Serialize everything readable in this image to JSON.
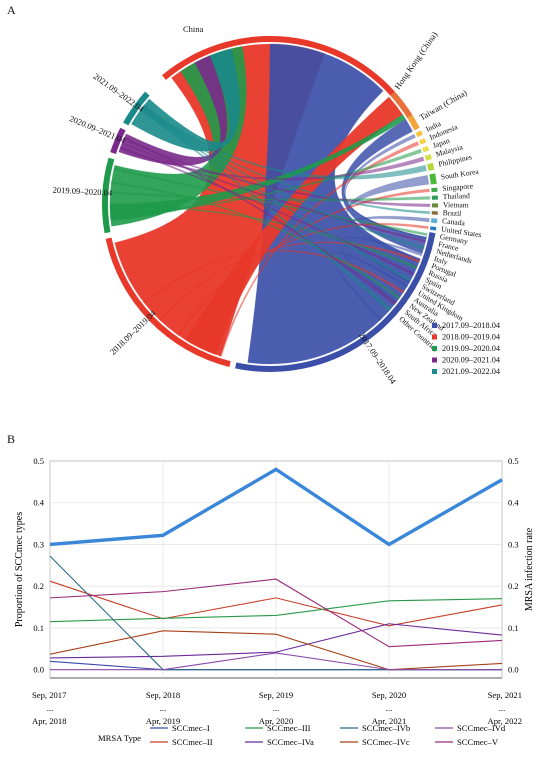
{
  "panels": {
    "a_label": "A",
    "b_label": "B"
  },
  "chart_data": [
    {
      "type": "chord",
      "countries": [
        {
          "name": "China",
          "color": "#e8382a"
        },
        {
          "name": "Hong Kong (China)",
          "color": "#e8703a"
        },
        {
          "name": "Taiwan (China)",
          "color": "#f2a43a"
        },
        {
          "name": "India",
          "color": "#f6c43a"
        },
        {
          "name": "Indonesia",
          "color": "#f4d24a"
        },
        {
          "name": "Japan",
          "color": "#e8e04a"
        },
        {
          "name": "Malaysia",
          "color": "#d6e04a"
        },
        {
          "name": "Philippines",
          "color": "#b6d63a"
        },
        {
          "name": "South Korea",
          "color": "#4fb83a"
        },
        {
          "name": "Singapore",
          "color": "#3aa84a"
        },
        {
          "name": "Thailand",
          "color": "#2f9a5a"
        },
        {
          "name": "Vietnam",
          "color": "#6a8a3a"
        },
        {
          "name": "Brazil",
          "color": "#8a6a3a"
        },
        {
          "name": "Canada",
          "color": "#5ab0d8"
        },
        {
          "name": "United States",
          "color": "#2a7ac8"
        },
        {
          "name": "Germany",
          "color": "#8aa0d8"
        },
        {
          "name": "France",
          "color": "#a0a0c8"
        },
        {
          "name": "Netherlands",
          "color": "#b0a0c0"
        },
        {
          "name": "Italy",
          "color": "#c0a0b0"
        },
        {
          "name": "Portugal",
          "color": "#c8a0a8"
        },
        {
          "name": "Russia",
          "color": "#d0a098"
        },
        {
          "name": "Spain",
          "color": "#d8a090"
        },
        {
          "name": "Switzerland",
          "color": "#c89080"
        },
        {
          "name": "United Kingdom",
          "color": "#c88080"
        },
        {
          "name": "Australia",
          "color": "#b87878"
        },
        {
          "name": "New Zealand",
          "color": "#a86868"
        },
        {
          "name": "South Africa",
          "color": "#984858"
        },
        {
          "name": "Other Countries",
          "color": "#883848"
        }
      ],
      "periods": [
        {
          "name": "2017.09–2018.04",
          "color": "#3b4fa8"
        },
        {
          "name": "2018.09–2019.04",
          "color": "#e8382a"
        },
        {
          "name": "2019.09–2020.04",
          "color": "#1f9a4a"
        },
        {
          "name": "2020.09–2021.04",
          "color": "#7a2a8a"
        },
        {
          "name": "2021.09–2022.04",
          "color": "#1a8a8a"
        }
      ],
      "legend_position": "bottom-right"
    },
    {
      "type": "line",
      "x_ticks": [
        {
          "top": "Sep, 2017",
          "mid": "...",
          "bottom": "Apr, 2018"
        },
        {
          "top": "Sep, 2018",
          "mid": "...",
          "bottom": "Apr, 2019"
        },
        {
          "top": "Sep, 2019",
          "mid": "...",
          "bottom": "Apr, 2020"
        },
        {
          "top": "Sep, 2020",
          "mid": "...",
          "bottom": "Apr, 2021"
        },
        {
          "top": "Sep, 2021",
          "mid": "...",
          "bottom": "Apr, 2022"
        }
      ],
      "ylabel_left": "Proportion of SCCmec types",
      "ylabel_right": "MRSA infection rate",
      "ylim": [
        -0.02,
        0.5
      ],
      "y_ticks": [
        "0.0",
        "0.1",
        "0.2",
        "0.3",
        "0.4",
        "0.5"
      ],
      "grid": true,
      "legend_title": "MRSA Type",
      "infection_rate": {
        "values": [
          0.3,
          0.322,
          0.48,
          0.3,
          0.455
        ],
        "color": "#3a86d8"
      },
      "series": [
        {
          "name": "SCCmec–I",
          "color": "#3a4aa8",
          "values": [
            0.02,
            0.0,
            0.0,
            0.0,
            0.0
          ]
        },
        {
          "name": "SCCmec–II",
          "color": "#c8402a",
          "values": [
            0.212,
            0.122,
            0.172,
            0.105,
            0.155
          ]
        },
        {
          "name": "SCCmec–III",
          "color": "#2a9a4a",
          "values": [
            0.115,
            0.123,
            0.13,
            0.165,
            0.17
          ]
        },
        {
          "name": "SCCmec–IVa",
          "color": "#6a2a9a",
          "values": [
            0.028,
            0.032,
            0.042,
            0.11,
            0.083
          ]
        },
        {
          "name": "SCCmec–IVb",
          "color": "#2a6a8a",
          "values": [
            0.272,
            0.0,
            0.0,
            0.0,
            0.0
          ]
        },
        {
          "name": "SCCmec–IVc",
          "color": "#a8401a",
          "values": [
            0.037,
            0.093,
            0.085,
            0.0,
            0.015
          ]
        },
        {
          "name": "SCCmec–IVd",
          "color": "#8a4aa8",
          "values": [
            0.0,
            0.0,
            0.04,
            0.0,
            0.0
          ]
        },
        {
          "name": "SCCmec–V",
          "color": "#9a2a7a",
          "values": [
            0.172,
            0.187,
            0.217,
            0.055,
            0.07
          ]
        }
      ]
    }
  ]
}
